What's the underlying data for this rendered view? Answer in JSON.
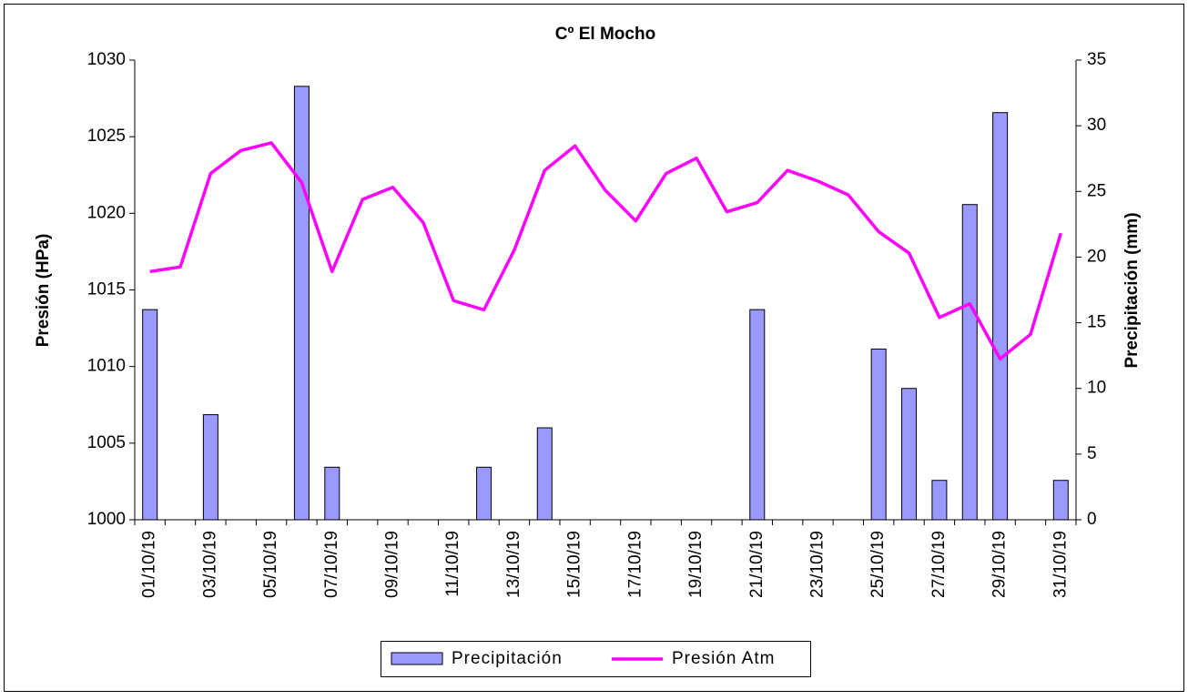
{
  "chart_data": {
    "type": "bar",
    "title": "Cº El Mocho",
    "categories": [
      "01/10/19",
      null,
      "03/10/19",
      null,
      "05/10/19",
      null,
      "07/10/19",
      null,
      "09/10/19",
      null,
      "11/10/19",
      null,
      "13/10/19",
      null,
      "15/10/19",
      null,
      "17/10/19",
      null,
      "19/10/19",
      null,
      "21/10/19",
      null,
      "23/10/19",
      null,
      "25/10/19",
      null,
      "27/10/19",
      null,
      "29/10/19",
      null,
      "31/10/19"
    ],
    "series": [
      {
        "name": "Precipitación",
        "type": "bar",
        "axis": "y2",
        "color": "#9999ff",
        "values": [
          16,
          0,
          8,
          0,
          0,
          33,
          4,
          0,
          0,
          0,
          0,
          4,
          0,
          7,
          0,
          0,
          0,
          0,
          0,
          0,
          16,
          0,
          0,
          0,
          13,
          10,
          3,
          24,
          31,
          0,
          3
        ]
      },
      {
        "name": "Presión Atm",
        "type": "line",
        "axis": "y",
        "color": "#ff00ff",
        "values": [
          1016.2,
          1016.5,
          1022.6,
          1024.1,
          1024.6,
          1022.0,
          1016.2,
          1020.9,
          1021.7,
          1019.4,
          1014.3,
          1013.7,
          1017.6,
          1022.8,
          1024.4,
          1021.5,
          1019.5,
          1022.6,
          1023.6,
          1020.1,
          1020.7,
          1022.8,
          1022.1,
          1021.2,
          1018.8,
          1017.4,
          1013.2,
          1014.1,
          1010.5,
          1012.1,
          1018.7
        ]
      }
    ],
    "y_label": "Presión (HPa)",
    "y2_label": "Precipitación (mm)",
    "ylim": [
      1000,
      1030
    ],
    "yticks": [
      1000,
      1005,
      1010,
      1015,
      1020,
      1025,
      1030
    ],
    "y2lim": [
      0,
      35
    ],
    "y2ticks": [
      0,
      5,
      10,
      15,
      20,
      25,
      30,
      35
    ],
    "legend": "bottom"
  }
}
